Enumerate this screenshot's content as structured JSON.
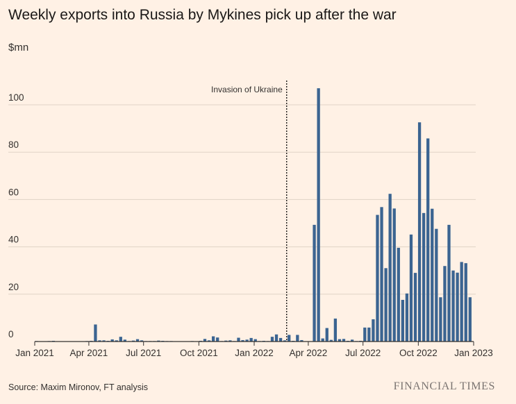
{
  "header": {
    "title": "Weekly exports into Russia by Mykines pick up after the war",
    "unit": "$mn"
  },
  "footer": {
    "source": "Source: Maxim Mironov, FT analysis",
    "brand": "FINANCIAL TIMES"
  },
  "colors": {
    "background": "#fff1e5",
    "bar": "#3b6491",
    "grid": "#e0d3c6",
    "axis": "#33302e",
    "brand": "#7a7471"
  },
  "chart_data": {
    "type": "bar",
    "title": "Weekly exports into Russia by Mykines pick up after the war",
    "xlabel": "",
    "ylabel": "$mn",
    "ylim": [
      0,
      110
    ],
    "yticks": [
      0,
      20,
      40,
      60,
      80,
      100
    ],
    "grid": true,
    "x_range": [
      "2021-01-01",
      "2023-01-01"
    ],
    "x_tick_labels": [
      {
        "date": "2021-01-01",
        "label": "Jan 2021"
      },
      {
        "date": "2021-04-01",
        "label": "Apr 2021"
      },
      {
        "date": "2021-07-01",
        "label": "Jul 2021"
      },
      {
        "date": "2021-10-01",
        "label": "Oct 2021"
      },
      {
        "date": "2022-01-01",
        "label": "Jan 2022"
      },
      {
        "date": "2022-04-01",
        "label": "Apr 2022"
      },
      {
        "date": "2022-07-01",
        "label": "Jul 2022"
      },
      {
        "date": "2022-10-01",
        "label": "Oct 2022"
      },
      {
        "date": "2023-01-01",
        "label": "Jan 2023"
      }
    ],
    "annotation": {
      "date": "2022-02-24",
      "label": "Invasion of Ukraine"
    },
    "x": [
      "2021-01-04",
      "2021-01-11",
      "2021-01-18",
      "2021-01-25",
      "2021-02-01",
      "2021-02-08",
      "2021-02-15",
      "2021-02-22",
      "2021-03-01",
      "2021-03-08",
      "2021-03-15",
      "2021-03-22",
      "2021-03-29",
      "2021-04-05",
      "2021-04-12",
      "2021-04-19",
      "2021-04-26",
      "2021-05-03",
      "2021-05-10",
      "2021-05-17",
      "2021-05-24",
      "2021-05-31",
      "2021-06-07",
      "2021-06-14",
      "2021-06-21",
      "2021-06-28",
      "2021-07-05",
      "2021-07-12",
      "2021-07-19",
      "2021-07-26",
      "2021-08-02",
      "2021-08-09",
      "2021-08-16",
      "2021-08-23",
      "2021-08-30",
      "2021-09-06",
      "2021-09-13",
      "2021-09-20",
      "2021-09-27",
      "2021-10-04",
      "2021-10-11",
      "2021-10-18",
      "2021-10-25",
      "2021-11-01",
      "2021-11-08",
      "2021-11-15",
      "2021-11-22",
      "2021-11-29",
      "2021-12-06",
      "2021-12-13",
      "2021-12-20",
      "2021-12-27",
      "2022-01-03",
      "2022-01-10",
      "2022-01-17",
      "2022-01-24",
      "2022-01-31",
      "2022-02-07",
      "2022-02-14",
      "2022-02-21",
      "2022-02-28",
      "2022-03-07",
      "2022-03-14",
      "2022-03-21",
      "2022-03-28",
      "2022-04-04",
      "2022-04-11",
      "2022-04-18",
      "2022-04-25",
      "2022-05-02",
      "2022-05-09",
      "2022-05-16",
      "2022-05-23",
      "2022-05-30",
      "2022-06-06",
      "2022-06-13",
      "2022-06-20",
      "2022-06-27",
      "2022-07-04",
      "2022-07-11",
      "2022-07-18",
      "2022-07-25",
      "2022-08-01",
      "2022-08-08",
      "2022-08-15",
      "2022-08-22",
      "2022-08-29",
      "2022-09-05",
      "2022-09-12",
      "2022-09-19",
      "2022-09-26",
      "2022-10-03",
      "2022-10-10",
      "2022-10-17",
      "2022-10-24",
      "2022-10-31",
      "2022-11-07",
      "2022-11-14",
      "2022-11-21",
      "2022-11-28",
      "2022-12-05",
      "2022-12-12",
      "2022-12-19",
      "2022-12-26"
    ],
    "values": [
      0.2,
      0.1,
      0.1,
      0.2,
      0.3,
      0.1,
      0.1,
      0.1,
      0.1,
      0.1,
      0.1,
      0.1,
      0.2,
      0.3,
      7.2,
      0.5,
      0.5,
      0.3,
      0.9,
      0.5,
      2.0,
      0.8,
      0.2,
      0.4,
      1.0,
      0.5,
      0.2,
      0.2,
      0.2,
      0.4,
      0.3,
      0.2,
      0.2,
      0.1,
      0.1,
      0.1,
      0.1,
      0.2,
      0.1,
      0.3,
      1.1,
      0.5,
      2.2,
      1.7,
      0.2,
      0.4,
      0.5,
      0.2,
      1.6,
      0.6,
      0.8,
      1.5,
      1.0,
      0.2,
      0.3,
      0.2,
      2.0,
      3.0,
      1.5,
      0.5,
      2.8,
      0.3,
      2.8,
      0.6,
      0.1,
      0.1,
      49.3,
      107.0,
      1.3,
      5.7,
      0.7,
      9.7,
      1.0,
      1.1,
      0.3,
      0.8,
      0.2,
      0.3,
      5.9,
      5.9,
      9.4,
      53.5,
      56.8,
      31.0,
      62.4,
      56.2,
      39.6,
      17.6,
      20.3,
      45.2,
      29.0,
      92.6,
      54.3,
      85.8,
      56.1,
      47.6,
      18.7,
      31.9,
      49.3,
      30.0,
      29.1,
      33.6,
      33.1,
      18.7
    ]
  }
}
